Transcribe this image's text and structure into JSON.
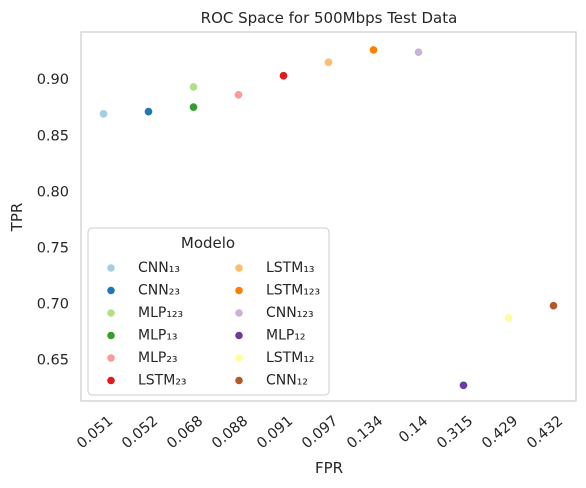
{
  "chart_data": {
    "type": "scatter",
    "title": "ROC Space for 500Mbps Test Data",
    "xlabel": "FPR",
    "ylabel": "TPR",
    "x_axis_kind": "categorical",
    "categories": [
      "0.051",
      "0.052",
      "0.068",
      "0.088",
      "0.091",
      "0.097",
      "0.134",
      "0.14",
      "0.315",
      "0.429",
      "0.432"
    ],
    "y_ticks": [
      "0.65",
      "0.70",
      "0.75",
      "0.80",
      "0.85",
      "0.90"
    ],
    "ylim": [
      0.614,
      0.943
    ],
    "grid": false,
    "legend": {
      "title": "Modelo",
      "placement": "lower-left",
      "columns": 2
    },
    "series": [
      {
        "name": "CNN₁₃",
        "color": "#a6cee3",
        "x": "0.051",
        "y": 0.87
      },
      {
        "name": "CNN₂₃",
        "color": "#1f78b4",
        "x": "0.052",
        "y": 0.872
      },
      {
        "name": "MLP₁₂₃",
        "color": "#b2df8a",
        "x": "0.068",
        "y": 0.894
      },
      {
        "name": "MLP₁₃",
        "color": "#33a02c",
        "x": "0.068",
        "y": 0.876
      },
      {
        "name": "MLP₂₃",
        "color": "#fb9a99",
        "x": "0.088",
        "y": 0.887
      },
      {
        "name": "LSTM₂₃",
        "color": "#e31a1c",
        "x": "0.091",
        "y": 0.904
      },
      {
        "name": "LSTM₁₃",
        "color": "#fdbf6f",
        "x": "0.097",
        "y": 0.916
      },
      {
        "name": "LSTM₁₂₃",
        "color": "#ff7f00",
        "x": "0.134",
        "y": 0.927
      },
      {
        "name": "CNN₁₂₃",
        "color": "#cab2d6",
        "x": "0.14",
        "y": 0.925
      },
      {
        "name": "MLP₁₂",
        "color": "#6a3d9a",
        "x": "0.315",
        "y": 0.628
      },
      {
        "name": "LSTM₁₂",
        "color": "#ffff99",
        "x": "0.429",
        "y": 0.688
      },
      {
        "name": "CNN₁₂",
        "color": "#b15928",
        "x": "0.432",
        "y": 0.699
      }
    ]
  }
}
